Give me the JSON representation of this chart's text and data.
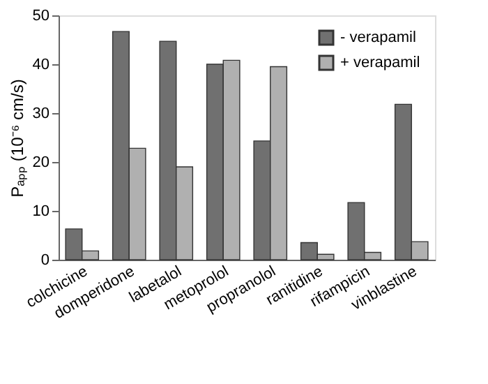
{
  "chart_data": {
    "type": "bar",
    "ylabel": "Pₐₚₚ (10⁻⁶ cm/s)",
    "categories": [
      "colchicine",
      "domperidone",
      "labetalol",
      "metoprolol",
      "propranolol",
      "ranitidine",
      "rifampicin",
      "vinblastine"
    ],
    "series": [
      {
        "name": "- verapamil",
        "color": "#707070",
        "values": [
          6.3,
          46.7,
          44.7,
          40.0,
          24.3,
          3.5,
          11.7,
          31.8
        ]
      },
      {
        "name": "+ verapamil",
        "color": "#b0b0b0",
        "values": [
          1.8,
          22.8,
          19.0,
          40.8,
          39.5,
          1.1,
          1.5,
          3.7
        ]
      }
    ],
    "ylim": [
      0,
      50
    ],
    "yticks": [
      0,
      10,
      20,
      30,
      40,
      50
    ],
    "grid": false,
    "legend": "top right"
  }
}
